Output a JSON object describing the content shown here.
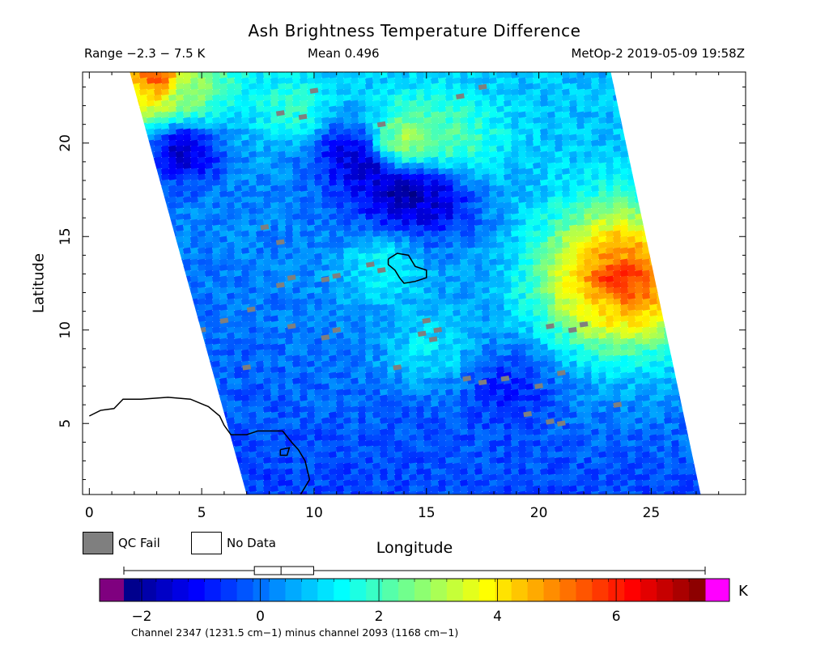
{
  "header": {
    "title": "Ash Brightness Temperature Difference",
    "range": "Range −2.3 − 7.5 K",
    "mean": "Mean 0.496",
    "satellite": "MetOp-2 2019-05-09 19:58Z"
  },
  "legend": {
    "qc_fail": "QC Fail",
    "no_data": "No Data",
    "qc_color": "#7f7f7f"
  },
  "colorbar": {
    "unit": "K",
    "tick_labels": [
      "−2",
      "0",
      "2",
      "4",
      "6"
    ],
    "ticks": [
      -2,
      0,
      2,
      4,
      6
    ],
    "range": [
      -2.3,
      7.5
    ],
    "under_color": "#7f007f",
    "over_color": "#ff00ff",
    "colormap": [
      "#00007f",
      "#0000ff",
      "#007fff",
      "#00ffff",
      "#7fff7f",
      "#ffff00",
      "#ff7f00",
      "#ff0000",
      "#7f0000"
    ],
    "boxplot": {
      "min": -2.3,
      "q1": -0.1,
      "median": 0.35,
      "q3": 0.9,
      "max": 7.5
    }
  },
  "footer": "Channel 2347 (1231.5 cm−1) minus channel 2093 (1168 cm−1)",
  "chart_data": {
    "type": "heatmap",
    "title": "Ash Brightness Temperature Difference",
    "xlabel": "Longitude",
    "ylabel": "Latitude",
    "xlim": [
      -0.3,
      29.2
    ],
    "ylim": [
      1.2,
      23.8
    ],
    "xticks": [
      0,
      5,
      10,
      15,
      20,
      25
    ],
    "yticks": [
      5,
      10,
      15,
      20
    ],
    "x_tick_labels": [
      "0",
      "5",
      "10",
      "15",
      "20",
      "25"
    ],
    "y_tick_labels": [
      "5",
      "10",
      "15",
      "20"
    ],
    "value_range": [
      -2.3,
      7.5
    ],
    "mean": 0.496,
    "units": "K",
    "swath_edges": {
      "west": [
        [
          1.8,
          23.8
        ],
        [
          7.0,
          1.2
        ]
      ],
      "east": [
        [
          23.2,
          23.8
        ],
        [
          27.2,
          1.2
        ]
      ]
    },
    "features": [
      {
        "lon": 23.3,
        "lat": 12.5,
        "value": 7.5
      },
      {
        "lon": 23.5,
        "lat": 13.4,
        "value": 6.5
      },
      {
        "lon": 24.0,
        "lat": 12.5,
        "value": 5.0
      },
      {
        "lon": 23.3,
        "lat": 13.9,
        "value": 4.0
      },
      {
        "lon": 22.8,
        "lat": 11.8,
        "value": 3.5
      },
      {
        "lon": 2.7,
        "lat": 23.5,
        "value": 6.5
      },
      {
        "lon": 2.2,
        "lat": 23.0,
        "value": 3.8
      },
      {
        "lon": 4.0,
        "lat": 22.8,
        "value": 2.5
      },
      {
        "lon": 14.0,
        "lat": 20.3,
        "value": 3.5
      },
      {
        "lon": 13.5,
        "lat": 20.0,
        "value": 2.6
      },
      {
        "lon": 16.2,
        "lat": 20.3,
        "value": 2.2
      },
      {
        "lon": 9.0,
        "lat": 22.0,
        "value": 1.8
      },
      {
        "lon": 13.8,
        "lat": 17.5,
        "value": -2.3
      },
      {
        "lon": 12.5,
        "lat": 18.8,
        "value": -1.9
      },
      {
        "lon": 11.5,
        "lat": 19.7,
        "value": -1.5
      },
      {
        "lon": 15.0,
        "lat": 17.0,
        "value": -1.6
      },
      {
        "lon": 4.0,
        "lat": 19.8,
        "value": -1.7
      },
      {
        "lon": 13.0,
        "lat": 13.5,
        "value": 1.5
      },
      {
        "lon": 15.0,
        "lat": 9.0,
        "value": 1.2
      },
      {
        "lon": 18.5,
        "lat": 7.0,
        "value": -0.8
      },
      {
        "lon": 14.5,
        "lat": 4.0,
        "value": -0.3
      }
    ],
    "qc_fail_pixels": [
      [
        7.8,
        15.5
      ],
      [
        8.5,
        14.7
      ],
      [
        8.5,
        12.4
      ],
      [
        9.0,
        12.8
      ],
      [
        10.5,
        12.7
      ],
      [
        11.0,
        12.9
      ],
      [
        12.5,
        13.5
      ],
      [
        13.0,
        13.2
      ],
      [
        7.2,
        11.1
      ],
      [
        6.0,
        10.5
      ],
      [
        5.0,
        10.0
      ],
      [
        9.0,
        10.2
      ],
      [
        10.5,
        9.6
      ],
      [
        11.0,
        10.0
      ],
      [
        7.0,
        8.0
      ],
      [
        13.7,
        8.0
      ],
      [
        15.0,
        10.5
      ],
      [
        15.3,
        9.5
      ],
      [
        14.8,
        9.8
      ],
      [
        15.5,
        10.0
      ],
      [
        16.8,
        7.4
      ],
      [
        17.5,
        7.2
      ],
      [
        18.5,
        7.4
      ],
      [
        20.0,
        7.0
      ],
      [
        21.0,
        7.7
      ],
      [
        20.5,
        10.2
      ],
      [
        21.5,
        10.0
      ],
      [
        22.0,
        10.3
      ],
      [
        19.5,
        5.5
      ],
      [
        20.5,
        5.1
      ],
      [
        21.0,
        5.0
      ],
      [
        23.5,
        6.0
      ],
      [
        8.5,
        21.6
      ],
      [
        9.5,
        21.4
      ],
      [
        13.0,
        21.0
      ],
      [
        16.5,
        22.5
      ],
      [
        17.5,
        23.0
      ],
      [
        10.0,
        22.8
      ]
    ],
    "coastlines": [
      {
        "name": "africa-coast",
        "points": [
          [
            0,
            5.4
          ],
          [
            0.5,
            5.7
          ],
          [
            1.1,
            5.8
          ],
          [
            1.5,
            6.3
          ],
          [
            2.3,
            6.3
          ],
          [
            3.5,
            6.4
          ],
          [
            4.5,
            6.3
          ],
          [
            5.3,
            5.9
          ],
          [
            5.8,
            5.4
          ],
          [
            6.0,
            4.9
          ],
          [
            6.3,
            4.4
          ],
          [
            7.0,
            4.4
          ],
          [
            7.5,
            4.6
          ],
          [
            8.0,
            4.6
          ],
          [
            8.6,
            4.6
          ],
          [
            9.0,
            4.0
          ],
          [
            9.3,
            3.6
          ],
          [
            9.6,
            3.0
          ],
          [
            9.8,
            2.0
          ],
          [
            9.4,
            1.2
          ]
        ]
      },
      {
        "name": "bioko-island",
        "points": [
          [
            8.5,
            3.6
          ],
          [
            8.9,
            3.7
          ],
          [
            8.8,
            3.3
          ],
          [
            8.5,
            3.3
          ],
          [
            8.5,
            3.6
          ]
        ]
      },
      {
        "name": "lake-chad",
        "points": [
          [
            13.3,
            13.8
          ],
          [
            13.7,
            14.1
          ],
          [
            14.2,
            14.0
          ],
          [
            14.5,
            13.4
          ],
          [
            15.0,
            13.2
          ],
          [
            15.0,
            12.8
          ],
          [
            14.5,
            12.6
          ],
          [
            14.0,
            12.5
          ],
          [
            13.8,
            12.8
          ],
          [
            13.6,
            13.2
          ],
          [
            13.3,
            13.5
          ],
          [
            13.3,
            13.8
          ]
        ]
      }
    ]
  }
}
